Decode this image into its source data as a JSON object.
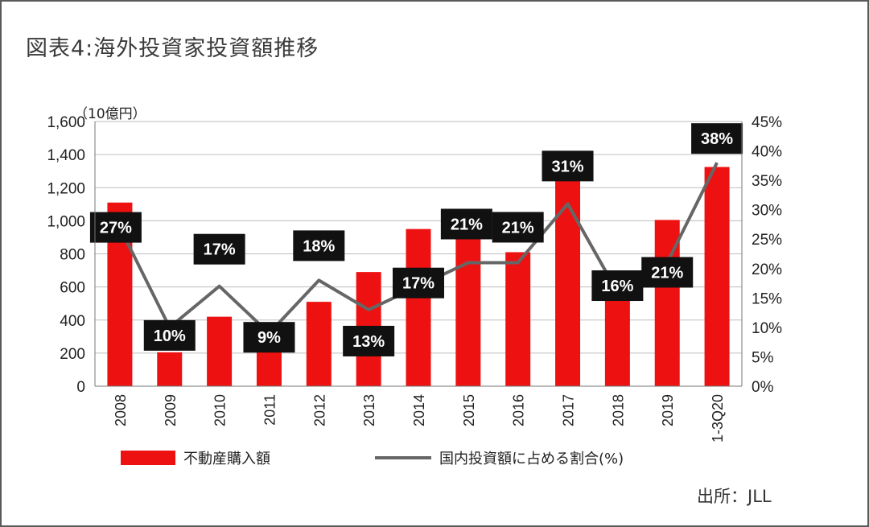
{
  "title": "図表4:海外投資家投資額推移",
  "unit_label": "（10億円）",
  "source": "出所：JLL",
  "colors": {
    "bar": "#ee1111",
    "line": "#666666",
    "label_bg": "#111111",
    "label_text": "#ffffff"
  },
  "chart_data": {
    "type": "bar",
    "categories": [
      "2008",
      "2009",
      "2010",
      "2011",
      "2012",
      "2013",
      "2014",
      "2015",
      "2016",
      "2017",
      "2018",
      "2019",
      "1-3Q20"
    ],
    "series": [
      {
        "name": "不動産購入額",
        "type": "bar",
        "axis": "left",
        "values": [
          1110,
          205,
          420,
          220,
          510,
          690,
          950,
          1065,
          810,
          1410,
          650,
          1005,
          1325
        ]
      },
      {
        "name": "国内投資額に占める割合(%)",
        "type": "line",
        "axis": "right",
        "values": [
          27,
          10,
          17,
          9,
          18,
          13,
          17,
          21,
          21,
          31,
          16,
          21,
          38
        ],
        "labels": [
          "27%",
          "10%",
          "17%",
          "9%",
          "18%",
          "13%",
          "17%",
          "21%",
          "21%",
          "31%",
          "16%",
          "21%",
          "38%"
        ]
      }
    ],
    "y_left": {
      "min": 0,
      "max": 1600,
      "step": 200,
      "ticks": [
        "0",
        "200",
        "400",
        "600",
        "800",
        "1,000",
        "1,200",
        "1,400",
        "1,600"
      ]
    },
    "y_right": {
      "min": 0,
      "max": 45,
      "step": 5,
      "ticks": [
        "0%",
        "5%",
        "10%",
        "15%",
        "20%",
        "25%",
        "30%",
        "35%",
        "40%",
        "45%"
      ]
    },
    "grid": true,
    "legend_position": "bottom"
  }
}
